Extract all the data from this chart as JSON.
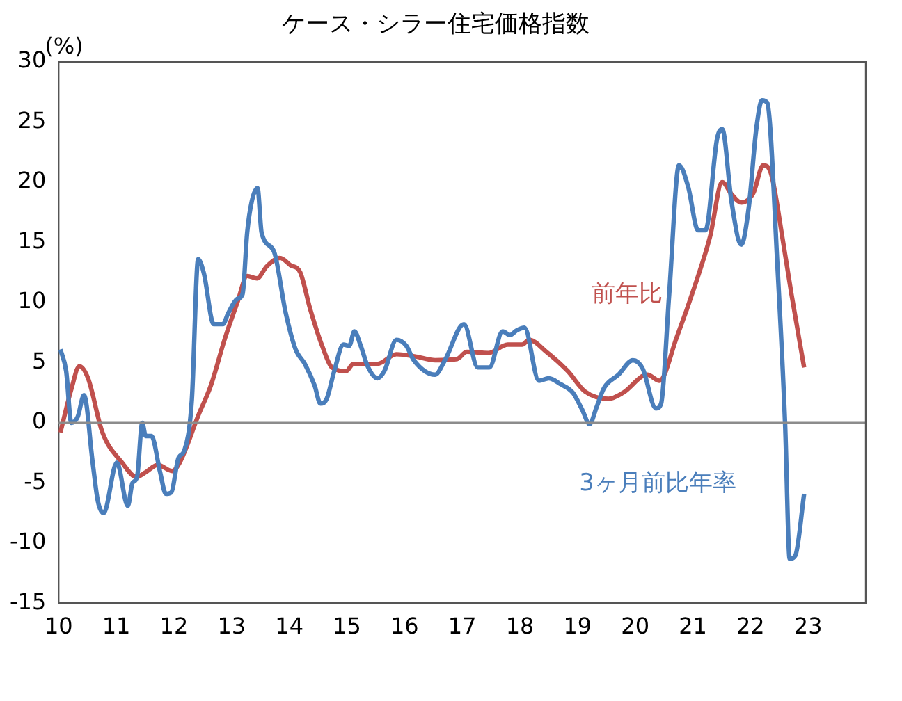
{
  "chart_data": {
    "type": "line",
    "title": "ケース・シラー住宅価格指数",
    "ylabel": "(%)",
    "xlim": [
      10,
      24
    ],
    "xticks": [
      10,
      11,
      12,
      13,
      14,
      15,
      16,
      17,
      18,
      19,
      20,
      21,
      22,
      23
    ],
    "ylim": [
      -15,
      30
    ],
    "yticks": [
      -15,
      -10,
      -5,
      0,
      5,
      10,
      15,
      20,
      25,
      30
    ],
    "grid": false,
    "legend": false,
    "marker": "none",
    "line_style": "solid",
    "ref_lines": [
      {
        "axis": "y",
        "value": 0,
        "color": "#8c8c8c"
      }
    ],
    "series": [
      {
        "name": "3ヶ月前比年率",
        "color": "#4a7ebb",
        "x": [
          10.03,
          10.13,
          10.22,
          10.33,
          10.44,
          10.59,
          10.68,
          10.78,
          11.01,
          11.2,
          11.28,
          11.36,
          11.45,
          11.51,
          11.61,
          11.76,
          11.86,
          11.95,
          12.08,
          12.18,
          12.31,
          12.42,
          12.52,
          12.69,
          12.85,
          12.94,
          13.1,
          13.19,
          13.27,
          13.35,
          13.45,
          13.52,
          13.73,
          13.94,
          14.11,
          14.27,
          14.44,
          14.54,
          14.65,
          14.78,
          14.94,
          15.04,
          15.13,
          15.24,
          15.36,
          15.53,
          15.65,
          15.86,
          16.03,
          16.16,
          16.53,
          16.7,
          17.03,
          17.27,
          17.47,
          17.7,
          17.83,
          17.95,
          18.08,
          18.33,
          18.5,
          18.71,
          18.92,
          19.08,
          19.21,
          19.33,
          19.46,
          19.71,
          19.96,
          20.13,
          20.36,
          20.45,
          20.59,
          20.76,
          20.92,
          21.09,
          21.22,
          21.42,
          21.51,
          21.67,
          21.84,
          21.97,
          22.1,
          22.2,
          22.29,
          22.47,
          22.6,
          22.68,
          22.78,
          22.93
        ],
        "values": [
          6.1,
          4.3,
          0,
          0.5,
          2.3,
          -3.3,
          -6.5,
          -7.5,
          -3.3,
          -6.9,
          -5,
          -4.5,
          0,
          -1.1,
          -1.1,
          -4.1,
          -5.9,
          -5.8,
          -2.9,
          -2.3,
          1.9,
          13.6,
          12.4,
          8.2,
          8.2,
          9.1,
          10.3,
          10.7,
          15.8,
          18.4,
          19.5,
          15.8,
          14.3,
          9.1,
          6.1,
          4.9,
          3.1,
          1.6,
          2,
          4.3,
          6.5,
          6.4,
          7.6,
          6.4,
          4.7,
          3.7,
          4.3,
          6.9,
          6.4,
          5.2,
          4,
          5.2,
          8.2,
          4.6,
          4.6,
          7.6,
          7.3,
          7.7,
          7.9,
          3.5,
          3.7,
          3.2,
          2.5,
          1.1,
          -0.1,
          1.3,
          2.9,
          4,
          5.2,
          4.5,
          1.2,
          1.6,
          10.7,
          21.4,
          19.6,
          16,
          16,
          23.6,
          24.4,
          18.4,
          14.8,
          17.9,
          24.4,
          26.8,
          26.6,
          12.8,
          -0.1,
          -11.3,
          -11,
          -5.9
        ]
      },
      {
        "name": "前年比",
        "color": "#c0504d",
        "x": [
          10.03,
          10.22,
          10.36,
          10.51,
          10.76,
          11.1,
          11.35,
          11.51,
          11.72,
          11.97,
          12.1,
          12.43,
          12.64,
          12.89,
          13.1,
          13.27,
          13.44,
          13.61,
          13.84,
          14.02,
          14.19,
          14.36,
          14.57,
          14.74,
          14.99,
          15.11,
          15.53,
          15.86,
          16.2,
          16.53,
          16.91,
          17.08,
          17.45,
          17.79,
          18.04,
          18.16,
          18.46,
          18.83,
          19.13,
          19.54,
          19.79,
          20.21,
          20.42,
          20.72,
          21.05,
          21.3,
          21.51,
          21.67,
          21.84,
          22.05,
          22.22,
          22.35,
          22.56,
          22.71,
          22.93
        ],
        "values": [
          -0.8,
          2.8,
          4.7,
          3.7,
          -0.8,
          -3.3,
          -4.5,
          -4.1,
          -3.5,
          -4,
          -3.3,
          0.7,
          3.1,
          7.1,
          10,
          12.2,
          12,
          13,
          13.7,
          13.1,
          12.5,
          9.5,
          6.4,
          4.6,
          4.3,
          4.9,
          4.9,
          5.7,
          5.5,
          5.2,
          5.3,
          5.9,
          5.8,
          6.5,
          6.5,
          6.9,
          5.9,
          4.3,
          2.6,
          2,
          2.5,
          4,
          3.5,
          7.1,
          11.6,
          15.5,
          20,
          19,
          18.3,
          19.1,
          21.4,
          20.8,
          15.2,
          10.7,
          4.6
        ]
      }
    ]
  }
}
